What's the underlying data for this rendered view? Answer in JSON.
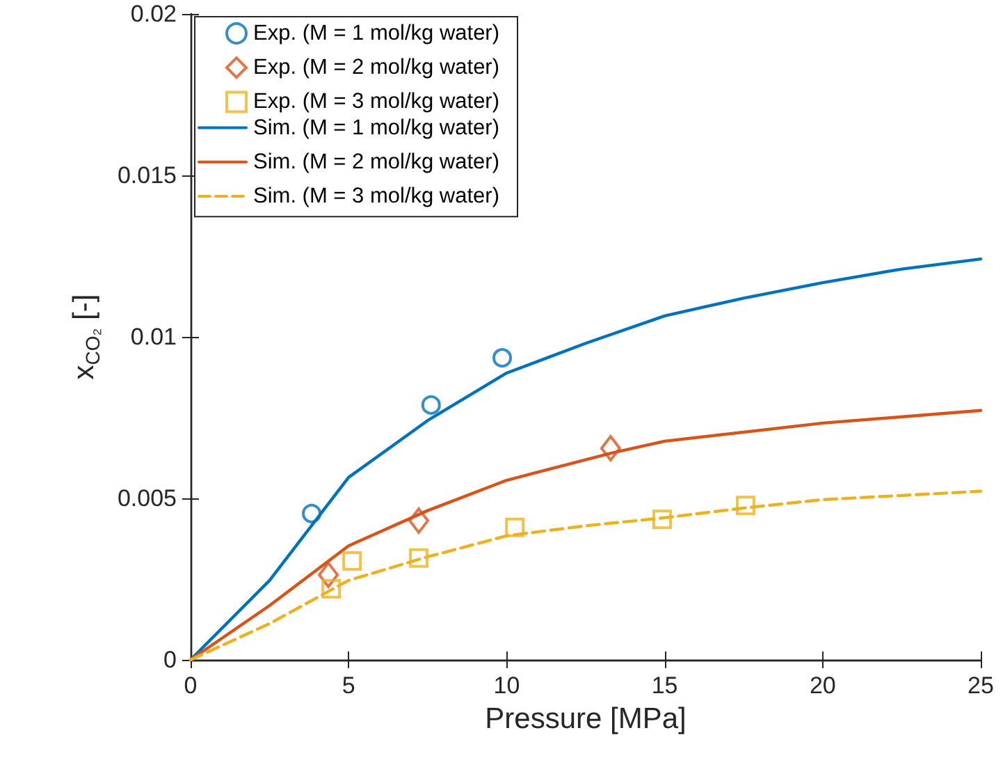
{
  "chart_data": {
    "type": "scatter",
    "xlabel": "Pressure [MPa]",
    "ylabel": "x$_{CO₂}$ [-]",
    "xlim": [
      0,
      25
    ],
    "ylim": [
      0,
      0.02
    ],
    "xticks": [
      0,
      5,
      10,
      15,
      20,
      25
    ],
    "yticks": [
      0,
      0.005,
      0.01,
      0.015,
      0.02
    ],
    "grid": false,
    "legend": "top left",
    "series": [
      {
        "name": "Exp. (M = 1 mol/kg water)",
        "type": "scatter",
        "marker": "circle",
        "color": "#0072bd",
        "x": [
          3.83,
          7.61,
          9.86
        ],
        "values": [
          0.00453,
          0.00789,
          0.00935
        ]
      },
      {
        "name": "Exp. (M = 2 mol/kg water)",
        "type": "scatter",
        "marker": "diamond",
        "color": "#d95319",
        "x": [
          4.36,
          7.22,
          13.29
        ],
        "values": [
          0.00263,
          0.00431,
          0.00655
        ]
      },
      {
        "name": "Exp. (M = 3 mol/kg water)",
        "type": "scatter",
        "marker": "square",
        "color": "#edb120",
        "x": [
          4.45,
          5.11,
          7.22,
          10.26,
          14.92,
          17.56
        ],
        "values": [
          0.0022,
          0.00306,
          0.00315,
          0.0041,
          0.00435,
          0.00478
        ]
      },
      {
        "name": "Sim. (M = 1 mol/kg water)",
        "type": "line",
        "marker": "none",
        "line_style": "solid",
        "color": "#0072bd",
        "x": [
          0,
          2.5,
          5,
          7.5,
          10,
          12.5,
          15,
          17.5,
          20,
          22.5,
          25
        ],
        "values": [
          0,
          0.00246,
          0.00565,
          0.00741,
          0.00888,
          0.0098,
          0.01065,
          0.0112,
          0.01168,
          0.0121,
          0.01241
        ]
      },
      {
        "name": "Sim. (M = 2 mol/kg water)",
        "type": "line",
        "marker": "none",
        "line_style": "solid",
        "color": "#d95319",
        "x": [
          0,
          2.5,
          5,
          7.5,
          10,
          13.3,
          15,
          20,
          25
        ],
        "values": [
          0,
          0.00168,
          0.00353,
          0.00462,
          0.00556,
          0.0064,
          0.00677,
          0.00733,
          0.00772
        ]
      },
      {
        "name": "Sim. (M = 3 mol/kg water)",
        "type": "line",
        "marker": "none",
        "line_style": "dashed",
        "color": "#edb120",
        "x": [
          0,
          2.5,
          5,
          7.5,
          10,
          12.5,
          15,
          17.5,
          20,
          25
        ],
        "values": [
          0,
          0.00112,
          0.00246,
          0.00319,
          0.00384,
          0.00415,
          0.0044,
          0.0047,
          0.00496,
          0.00522
        ]
      }
    ]
  }
}
